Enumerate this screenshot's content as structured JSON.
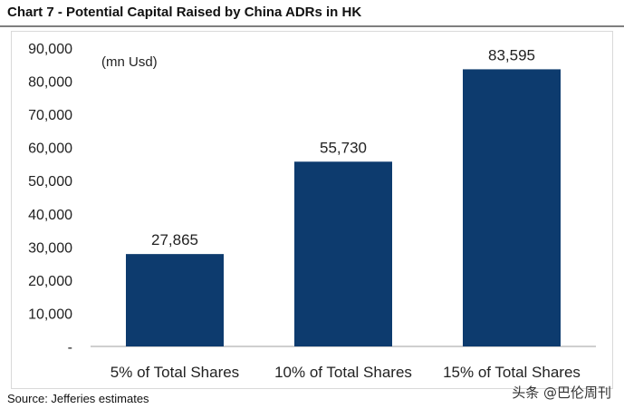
{
  "header": {
    "title": "Chart 7 - Potential Capital Raised by China ADRs in HK"
  },
  "chart_data": {
    "type": "bar",
    "title": "Chart 7 - Potential Capital Raised by China ADRs in HK",
    "unit_label": "(mn Usd)",
    "categories": [
      "5% of Total Shares",
      "10% of Total Shares",
      "15% of Total Shares"
    ],
    "values": [
      27865,
      55730,
      83595
    ],
    "value_labels": [
      "27,865",
      "55,730",
      "83,595"
    ],
    "ylim": [
      0,
      90000
    ],
    "yticks": [
      0,
      10000,
      20000,
      30000,
      40000,
      50000,
      60000,
      70000,
      80000,
      90000
    ],
    "ytick_labels": [
      "-",
      "10,000",
      "20,000",
      "30,000",
      "40,000",
      "50,000",
      "60,000",
      "70,000",
      "80,000",
      "90,000"
    ],
    "xlabel": "",
    "ylabel": "",
    "grid": false,
    "bar_color": "#0d3b6e"
  },
  "footer": {
    "source": "Source: Jefferies estimates",
    "watermark": "头条 @巴伦周刊"
  }
}
